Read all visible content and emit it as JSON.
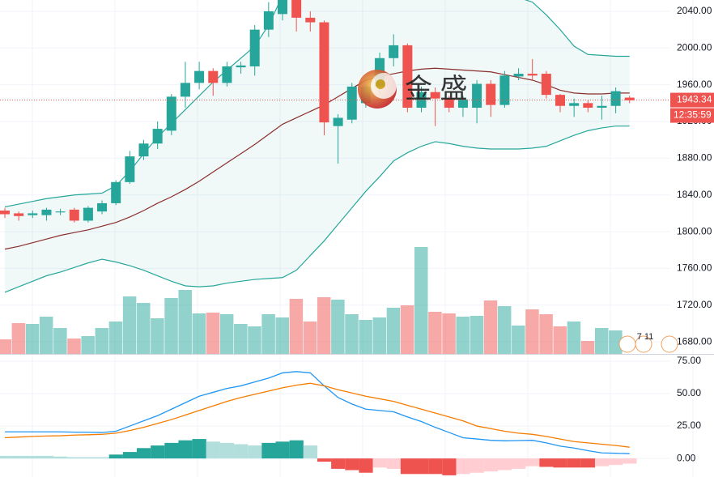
{
  "chart_data": {
    "type": "candlestick",
    "ylim": [
      1666.9,
      2052.3
    ],
    "yticks": [
      {
        "value": 2040,
        "label": "2040.00"
      },
      {
        "value": 2000,
        "label": "2000.00"
      },
      {
        "value": 1960,
        "label": "1960.00"
      },
      {
        "value": 1920,
        "label": "1920.00"
      },
      {
        "value": 1880,
        "label": "1880.00"
      },
      {
        "value": 1840,
        "label": "1840.00"
      },
      {
        "value": 1800,
        "label": "1800.00"
      },
      {
        "value": 1760,
        "label": "1760.00"
      },
      {
        "value": 1720,
        "label": "1720.00"
      },
      {
        "value": 1680,
        "label": "1680.00"
      }
    ],
    "up_color": "#26a69a",
    "down_color": "#ef5350",
    "open": [
      1823,
      1820,
      1818,
      1818,
      1821,
      1824,
      1812,
      1822,
      1831,
      1854,
      1882,
      1896,
      1910,
      1947,
      1962,
      1975,
      1962,
      1979,
      1980,
      2020,
      2037,
      2055,
      2033,
      2028,
      1915,
      1922,
      1940,
      1958,
      1989,
      2003,
      1935,
      1952,
      1945,
      1935,
      1935,
      1961,
      1938,
      1969,
      1972,
      1972,
      1949,
      1937,
      1940,
      1935,
      1937,
      1946
    ],
    "high": [
      1826,
      1822,
      1823,
      1826,
      1825,
      1826,
      1828,
      1834,
      1856,
      1888,
      1900,
      1920,
      1950,
      1985,
      1985,
      1978,
      1985,
      1985,
      2025,
      2050,
      2060,
      2060,
      2040,
      2030,
      1928,
      1962,
      1960,
      1995,
      2015,
      2005,
      1958,
      1957,
      1948,
      1948,
      1965,
      1965,
      1975,
      1978,
      1988,
      1975,
      1950,
      1945,
      1943,
      1948,
      1957,
      1948
    ],
    "low": [
      1815,
      1812,
      1815,
      1812,
      1818,
      1810,
      1810,
      1819,
      1829,
      1852,
      1878,
      1890,
      1905,
      1935,
      1955,
      1948,
      1958,
      1972,
      1970,
      2012,
      2030,
      2018,
      2018,
      1905,
      1874,
      1918,
      1935,
      1950,
      1980,
      1930,
      1930,
      1915,
      1930,
      1925,
      1918,
      1925,
      1935,
      1965,
      1965,
      1945,
      1930,
      1925,
      1930,
      1922,
      1929,
      1940
    ],
    "close": [
      1819,
      1817,
      1820,
      1824,
      1822,
      1812,
      1826,
      1831,
      1854,
      1882,
      1896,
      1912,
      1947,
      1962,
      1975,
      1962,
      1980,
      1981,
      2020,
      2040,
      2055,
      2033,
      2028,
      1919,
      1924,
      1958,
      1958,
      1989,
      2003,
      1935,
      1952,
      1945,
      1935,
      1944,
      1961,
      1938,
      1970,
      1972,
      1970,
      1949,
      1937,
      1940,
      1935,
      1937,
      1953,
      1943
    ],
    "bollinger": {
      "color": "#26a69a",
      "middle_color": "#8b2e2e",
      "fill": "rgba(38,166,154,0.07)",
      "upper": [
        1827,
        1830,
        1833,
        1836,
        1838,
        1840,
        1841,
        1842,
        1850,
        1866,
        1885,
        1903,
        1918,
        1933,
        1948,
        1963,
        1976,
        1989,
        2002,
        2025,
        2057,
        2068,
        2075,
        2080,
        2082,
        2083,
        2083,
        2082,
        2081,
        2080,
        2078,
        2076,
        2074,
        2071,
        2068,
        2064,
        2060,
        2055,
        2050,
        2036,
        2020,
        2002,
        1993,
        1992,
        1991,
        1991
      ],
      "middle": [
        1781,
        1784,
        1788,
        1792,
        1796,
        1799,
        1802,
        1806,
        1810,
        1816,
        1823,
        1831,
        1838,
        1846,
        1855,
        1865,
        1875,
        1885,
        1895,
        1906,
        1917,
        1924,
        1931,
        1938,
        1947,
        1956,
        1965,
        1969,
        1972,
        1975,
        1977,
        1978,
        1977,
        1976,
        1975,
        1974,
        1971,
        1968,
        1965,
        1960,
        1954,
        1951,
        1950,
        1950,
        1951,
        1951
      ],
      "lower": [
        1734,
        1740,
        1746,
        1752,
        1756,
        1761,
        1766,
        1770,
        1767,
        1763,
        1758,
        1752,
        1746,
        1741,
        1740,
        1741,
        1744,
        1746,
        1748,
        1749,
        1750,
        1758,
        1774,
        1790,
        1808,
        1826,
        1844,
        1860,
        1877,
        1886,
        1893,
        1898,
        1896,
        1893,
        1891,
        1890,
        1890,
        1890,
        1891,
        1893,
        1899,
        1905,
        1910,
        1913,
        1915,
        1915
      ]
    },
    "volume": {
      "ylim": [
        0,
        140
      ],
      "values": [
        21,
        41,
        40,
        49,
        35,
        22,
        25,
        35,
        43,
        74,
        66,
        47,
        72,
        82,
        53,
        54,
        52,
        40,
        37,
        52,
        48,
        71,
        43,
        73,
        70,
        52,
        45,
        48,
        60,
        63,
        135,
        55,
        53,
        49,
        50,
        69,
        62,
        38,
        58,
        52,
        37,
        43,
        19,
        35,
        32,
        null
      ]
    },
    "current_price": 1943.34,
    "countdown": "12:35:59",
    "event_count": "7 11",
    "watermark": "金 盛",
    "oscillator": {
      "ylim": [
        -14.3,
        80
      ],
      "yticks": [
        {
          "value": 75,
          "label": "75.00"
        },
        {
          "value": 50,
          "label": "50.00"
        },
        {
          "value": 25,
          "label": "25.00"
        },
        {
          "value": 0,
          "label": "0.00"
        }
      ],
      "series": [
        {
          "color": "#2196f3",
          "values": [
            20.5,
            20.5,
            20.5,
            20.5,
            20.5,
            20.3,
            20.2,
            20,
            21,
            25,
            29,
            33,
            38,
            43,
            48,
            51,
            54,
            56,
            59,
            62,
            66,
            67,
            66,
            56,
            47,
            42,
            38,
            37,
            36,
            32,
            28.5,
            24,
            20,
            16,
            15,
            14,
            13.6,
            13.8,
            14,
            12,
            9.5,
            8,
            6,
            4.3,
            4,
            3.7
          ]
        },
        {
          "color": "#f57c00",
          "values": [
            16,
            16.5,
            17,
            17.3,
            17.5,
            18,
            18.3,
            18.6,
            19.5,
            21.5,
            24,
            27,
            30,
            33.5,
            37,
            40.5,
            44,
            47,
            49.5,
            52,
            54.5,
            56.5,
            58,
            56,
            53,
            50.5,
            48,
            46,
            44,
            41,
            38,
            35,
            32,
            29,
            25,
            23,
            21,
            19.5,
            18.6,
            17,
            15,
            13,
            12,
            11,
            10,
            8.7
          ]
        }
      ],
      "histogram": {
        "values": [
          2,
          2,
          2,
          2,
          1.5,
          1,
          1,
          1,
          3,
          5,
          8,
          10,
          12,
          14,
          15,
          13,
          12,
          11,
          10,
          12,
          13,
          14,
          10,
          -2.5,
          -8,
          -9,
          -11,
          -7,
          -8,
          -12,
          -12,
          -12,
          -13,
          -12,
          -11,
          -10,
          -9,
          -8,
          -6,
          -6.5,
          -7,
          -7,
          -7,
          -6,
          -5,
          -4
        ],
        "colors": [
          "#b2dfdb",
          "#b2dfdb",
          "#b2dfdb",
          "#b2dfdb",
          "#b2dfdb",
          "#b2dfdb",
          "#b2dfdb",
          "#b2dfdb",
          "#26a69a",
          "#26a69a",
          "#26a69a",
          "#26a69a",
          "#26a69a",
          "#26a69a",
          "#26a69a",
          "#b2dfdb",
          "#b2dfdb",
          "#b2dfdb",
          "#b2dfdb",
          "#26a69a",
          "#26a69a",
          "#26a69a",
          "#b2dfdb",
          "#ef5350",
          "#ef5350",
          "#ef5350",
          "#ef5350",
          "#ffcdd2",
          "#ffcdd2",
          "#ef5350",
          "#ef5350",
          "#ef5350",
          "#ef5350",
          "#ffcdd2",
          "#ffcdd2",
          "#ffcdd2",
          "#ffcdd2",
          "#ffcdd2",
          "#ffcdd2",
          "#ef5350",
          "#ef5350",
          "#ef5350",
          "#ef5350",
          "#ffcdd2",
          "#ffcdd2",
          "#ffcdd2"
        ]
      }
    }
  }
}
